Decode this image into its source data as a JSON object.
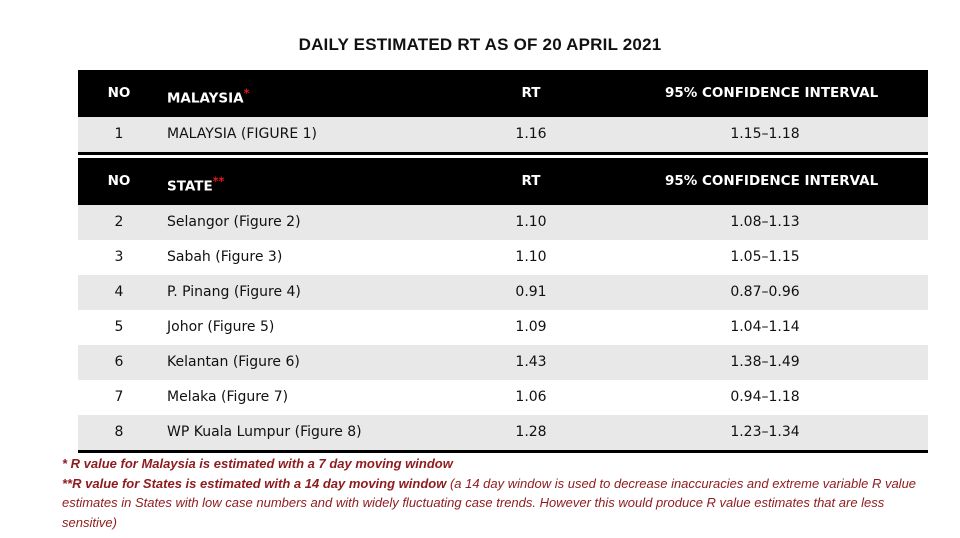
{
  "title": "DAILY ESTIMATED RT AS OF 20 APRIL 2021",
  "national_table": {
    "headers": {
      "no": "NO",
      "name": "MALAYSIA",
      "marker": "*",
      "rt": "RT",
      "ci": "95% CONFIDENCE INTERVAL"
    },
    "rows": [
      {
        "no": "1",
        "name": "MALAYSIA (FIGURE 1)",
        "rt": "1.16",
        "ci": "1.15–1.18"
      }
    ]
  },
  "state_table": {
    "headers": {
      "no": "NO",
      "name": "STATE",
      "marker": "**",
      "rt": "RT",
      "ci": "95% CONFIDENCE INTERVAL"
    },
    "rows": [
      {
        "no": "2",
        "name": "Selangor (Figure 2)",
        "rt": "1.10",
        "ci": "1.08–1.13"
      },
      {
        "no": "3",
        "name": "Sabah (Figure 3)",
        "rt": "1.10",
        "ci": "1.05–1.15"
      },
      {
        "no": "4",
        "name": "P. Pinang (Figure 4)",
        "rt": "0.91",
        "ci": "0.87–0.96"
      },
      {
        "no": "5",
        "name": "Johor (Figure 5)",
        "rt": "1.09",
        "ci": "1.04–1.14"
      },
      {
        "no": "6",
        "name": "Kelantan (Figure 6)",
        "rt": "1.43",
        "ci": "1.38–1.49"
      },
      {
        "no": "7",
        "name": "Melaka (Figure 7)",
        "rt": "1.06",
        "ci": "0.94–1.18"
      },
      {
        "no": "8",
        "name": "WP Kuala Lumpur (Figure 8)",
        "rt": "1.28",
        "ci": "1.23–1.34"
      }
    ]
  },
  "footnotes": {
    "note1": "*  R value for Malaysia is estimated with a 7 day moving window",
    "note2_bold": "**R value for States is estimated with a 14 day moving window",
    "note2_rest": " (a 14 day window is used to decrease inaccuracies and extreme variable R value estimates in States with low case numbers and with widely fluctuating case trends. However this would produce R value estimates that are less sensitive)"
  },
  "colors": {
    "header_bg": "#000000",
    "row_alt": "#e8e8e8",
    "marker": "#e01b1b",
    "footnote": "#8e1b1e"
  }
}
